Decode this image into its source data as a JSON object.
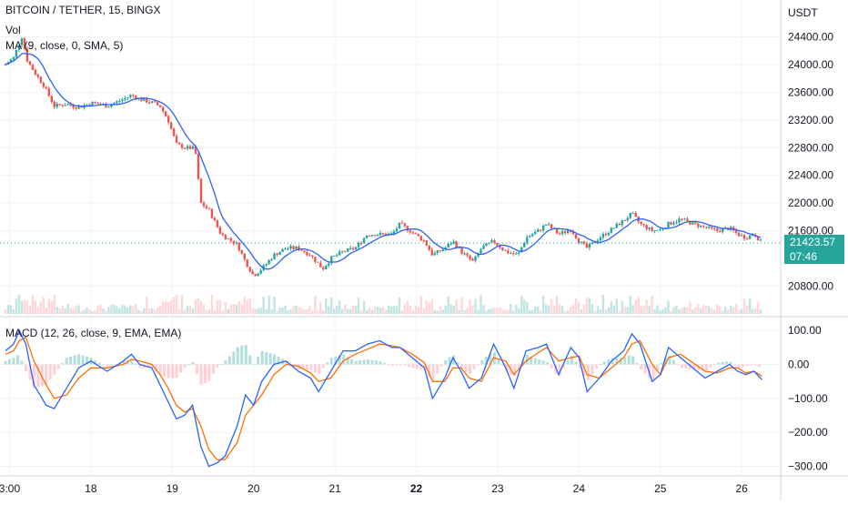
{
  "legend": {
    "title": "BITCOIN / TETHER, 15, BINGX",
    "vol": "Vol",
    "ma": "MA (9, close, 0, SMA, 5)",
    "macd": "MACD (12, 26, close, 9, EMA, EMA)"
  },
  "last_price": {
    "value": "21423.57",
    "countdown": "07:46"
  },
  "colors": {
    "up": "#26a69a",
    "down": "#ef5350",
    "ma_line": "#2962ff",
    "macd_line": "#2962ff",
    "signal_line": "#ff6d00",
    "hist_up": "#b2dfdb",
    "hist_down": "#ffcdd2",
    "price_line": "#26a69a",
    "grid": "#f0f3fa",
    "axis_text": "#131722"
  },
  "chart_data": [
    {
      "type": "candlestick",
      "title": "BITCOIN / TETHER, 15, BINGX",
      "y_axis_title": "USDT",
      "ylim": [
        20400,
        24800
      ],
      "y_ticks": [
        "24400.00",
        "24000.00",
        "23600.00",
        "23200.00",
        "22800.00",
        "22400.00",
        "22000.00",
        "21600.00",
        "20800.00"
      ],
      "x_ticks": [
        "3:00",
        "18",
        "19",
        "20",
        "21",
        "22",
        "23",
        "24",
        "25",
        "26"
      ],
      "x_range_days": [
        16.95,
        26.3
      ],
      "close_series": [
        [
          16.95,
          24000
        ],
        [
          17.05,
          24100
        ],
        [
          17.15,
          24400
        ],
        [
          17.22,
          24050
        ],
        [
          17.3,
          23900
        ],
        [
          17.42,
          23700
        ],
        [
          17.55,
          23400
        ],
        [
          17.7,
          23430
        ],
        [
          17.85,
          23380
        ],
        [
          18.0,
          23450
        ],
        [
          18.2,
          23400
        ],
        [
          18.4,
          23500
        ],
        [
          18.5,
          23560
        ],
        [
          18.6,
          23500
        ],
        [
          18.75,
          23450
        ],
        [
          18.85,
          23400
        ],
        [
          18.95,
          23200
        ],
        [
          19.05,
          22850
        ],
        [
          19.15,
          22800
        ],
        [
          19.28,
          22790
        ],
        [
          19.35,
          22000
        ],
        [
          19.45,
          21900
        ],
        [
          19.6,
          21550
        ],
        [
          19.8,
          21400
        ],
        [
          19.9,
          21150
        ],
        [
          20.0,
          20950
        ],
        [
          20.1,
          21050
        ],
        [
          20.25,
          21250
        ],
        [
          20.4,
          21350
        ],
        [
          20.55,
          21350
        ],
        [
          20.7,
          21250
        ],
        [
          20.85,
          21050
        ],
        [
          20.95,
          21200
        ],
        [
          21.1,
          21300
        ],
        [
          21.25,
          21350
        ],
        [
          21.4,
          21550
        ],
        [
          21.55,
          21550
        ],
        [
          21.7,
          21550
        ],
        [
          21.8,
          21700
        ],
        [
          21.95,
          21580
        ],
        [
          22.1,
          21450
        ],
        [
          22.2,
          21250
        ],
        [
          22.35,
          21350
        ],
        [
          22.45,
          21450
        ],
        [
          22.55,
          21300
        ],
        [
          22.7,
          21150
        ],
        [
          22.8,
          21350
        ],
        [
          22.95,
          21450
        ],
        [
          23.1,
          21300
        ],
        [
          23.25,
          21250
        ],
        [
          23.35,
          21500
        ],
        [
          23.5,
          21600
        ],
        [
          23.6,
          21700
        ],
        [
          23.75,
          21550
        ],
        [
          23.9,
          21620
        ],
        [
          24.0,
          21450
        ],
        [
          24.1,
          21350
        ],
        [
          24.25,
          21500
        ],
        [
          24.4,
          21620
        ],
        [
          24.55,
          21750
        ],
        [
          24.65,
          21850
        ],
        [
          24.75,
          21700
        ],
        [
          24.9,
          21600
        ],
        [
          25.0,
          21620
        ],
        [
          25.1,
          21700
        ],
        [
          25.25,
          21770
        ],
        [
          25.4,
          21700
        ],
        [
          25.55,
          21650
        ],
        [
          25.7,
          21600
        ],
        [
          25.85,
          21640
        ],
        [
          25.95,
          21550
        ],
        [
          26.05,
          21500
        ],
        [
          26.15,
          21560
        ],
        [
          26.25,
          21420
        ]
      ],
      "last_value": 21423.57
    },
    {
      "type": "line",
      "title": "MACD (12, 26, close, 9, EMA, EMA)",
      "ylim": [
        -320,
        130
      ],
      "y_ticks": [
        "100.00",
        "0.00",
        "−100.00",
        "−200.00",
        "−300.00"
      ],
      "series": [
        {
          "name": "MACD",
          "points": [
            [
              16.95,
              40
            ],
            [
              17.05,
              60
            ],
            [
              17.12,
              100
            ],
            [
              17.2,
              60
            ],
            [
              17.3,
              -60
            ],
            [
              17.45,
              -120
            ],
            [
              17.55,
              -130
            ],
            [
              17.7,
              -70
            ],
            [
              17.85,
              -10
            ],
            [
              18.0,
              10
            ],
            [
              18.2,
              -20
            ],
            [
              18.4,
              10
            ],
            [
              18.5,
              30
            ],
            [
              18.6,
              0
            ],
            [
              18.75,
              -10
            ],
            [
              18.85,
              -60
            ],
            [
              18.95,
              -110
            ],
            [
              19.05,
              -160
            ],
            [
              19.15,
              -150
            ],
            [
              19.25,
              -120
            ],
            [
              19.35,
              -240
            ],
            [
              19.45,
              -300
            ],
            [
              19.55,
              -290
            ],
            [
              19.65,
              -270
            ],
            [
              19.8,
              -180
            ],
            [
              19.9,
              -90
            ],
            [
              20.0,
              -120
            ],
            [
              20.1,
              -50
            ],
            [
              20.25,
              0
            ],
            [
              20.4,
              10
            ],
            [
              20.55,
              -20
            ],
            [
              20.7,
              -40
            ],
            [
              20.8,
              -80
            ],
            [
              20.95,
              -20
            ],
            [
              21.1,
              40
            ],
            [
              21.25,
              40
            ],
            [
              21.4,
              60
            ],
            [
              21.55,
              70
            ],
            [
              21.7,
              50
            ],
            [
              21.8,
              50
            ],
            [
              21.95,
              20
            ],
            [
              22.1,
              -10
            ],
            [
              22.2,
              -100
            ],
            [
              22.35,
              -40
            ],
            [
              22.45,
              20
            ],
            [
              22.55,
              -20
            ],
            [
              22.65,
              -70
            ],
            [
              22.8,
              -40
            ],
            [
              22.95,
              60
            ],
            [
              23.1,
              -10
            ],
            [
              23.2,
              -70
            ],
            [
              23.35,
              40
            ],
            [
              23.5,
              50
            ],
            [
              23.6,
              60
            ],
            [
              23.75,
              -30
            ],
            [
              23.9,
              50
            ],
            [
              24.0,
              20
            ],
            [
              24.1,
              -80
            ],
            [
              24.25,
              -40
            ],
            [
              24.4,
              10
            ],
            [
              24.55,
              40
            ],
            [
              24.65,
              90
            ],
            [
              24.75,
              60
            ],
            [
              24.9,
              -50
            ],
            [
              25.0,
              -30
            ],
            [
              25.1,
              50
            ],
            [
              25.25,
              20
            ],
            [
              25.4,
              -10
            ],
            [
              25.55,
              -40
            ],
            [
              25.7,
              -20
            ],
            [
              25.85,
              0
            ],
            [
              25.95,
              -20
            ],
            [
              26.05,
              -30
            ],
            [
              26.15,
              -20
            ],
            [
              26.25,
              -45
            ]
          ]
        },
        {
          "name": "Signal",
          "points": [
            [
              16.95,
              30
            ],
            [
              17.05,
              40
            ],
            [
              17.12,
              70
            ],
            [
              17.2,
              80
            ],
            [
              17.3,
              10
            ],
            [
              17.45,
              -60
            ],
            [
              17.55,
              -100
            ],
            [
              17.7,
              -90
            ],
            [
              17.85,
              -40
            ],
            [
              18.0,
              -10
            ],
            [
              18.2,
              -10
            ],
            [
              18.4,
              0
            ],
            [
              18.5,
              15
            ],
            [
              18.6,
              10
            ],
            [
              18.75,
              0
            ],
            [
              18.85,
              -30
            ],
            [
              18.95,
              -70
            ],
            [
              19.05,
              -120
            ],
            [
              19.15,
              -140
            ],
            [
              19.25,
              -130
            ],
            [
              19.35,
              -180
            ],
            [
              19.45,
              -250
            ],
            [
              19.55,
              -280
            ],
            [
              19.65,
              -280
            ],
            [
              19.8,
              -230
            ],
            [
              19.9,
              -150
            ],
            [
              20.0,
              -120
            ],
            [
              20.1,
              -90
            ],
            [
              20.25,
              -30
            ],
            [
              20.4,
              0
            ],
            [
              20.55,
              -5
            ],
            [
              20.7,
              -25
            ],
            [
              20.8,
              -50
            ],
            [
              20.95,
              -40
            ],
            [
              21.1,
              10
            ],
            [
              21.25,
              30
            ],
            [
              21.4,
              45
            ],
            [
              21.55,
              60
            ],
            [
              21.7,
              55
            ],
            [
              21.8,
              50
            ],
            [
              21.95,
              30
            ],
            [
              22.1,
              5
            ],
            [
              22.2,
              -50
            ],
            [
              22.35,
              -50
            ],
            [
              22.45,
              -10
            ],
            [
              22.55,
              -10
            ],
            [
              22.65,
              -40
            ],
            [
              22.8,
              -50
            ],
            [
              22.95,
              20
            ],
            [
              23.1,
              10
            ],
            [
              23.2,
              -30
            ],
            [
              23.35,
              10
            ],
            [
              23.5,
              35
            ],
            [
              23.6,
              50
            ],
            [
              23.75,
              10
            ],
            [
              23.9,
              20
            ],
            [
              24.0,
              25
            ],
            [
              24.1,
              -30
            ],
            [
              24.25,
              -40
            ],
            [
              24.4,
              -10
            ],
            [
              24.55,
              20
            ],
            [
              24.65,
              60
            ],
            [
              24.75,
              70
            ],
            [
              24.9,
              0
            ],
            [
              25.0,
              -30
            ],
            [
              25.1,
              20
            ],
            [
              25.25,
              30
            ],
            [
              25.4,
              5
            ],
            [
              25.55,
              -20
            ],
            [
              25.7,
              -25
            ],
            [
              25.85,
              -10
            ],
            [
              25.95,
              -10
            ],
            [
              26.05,
              -25
            ],
            [
              26.15,
              -20
            ],
            [
              26.25,
              -35
            ]
          ]
        }
      ]
    }
  ]
}
